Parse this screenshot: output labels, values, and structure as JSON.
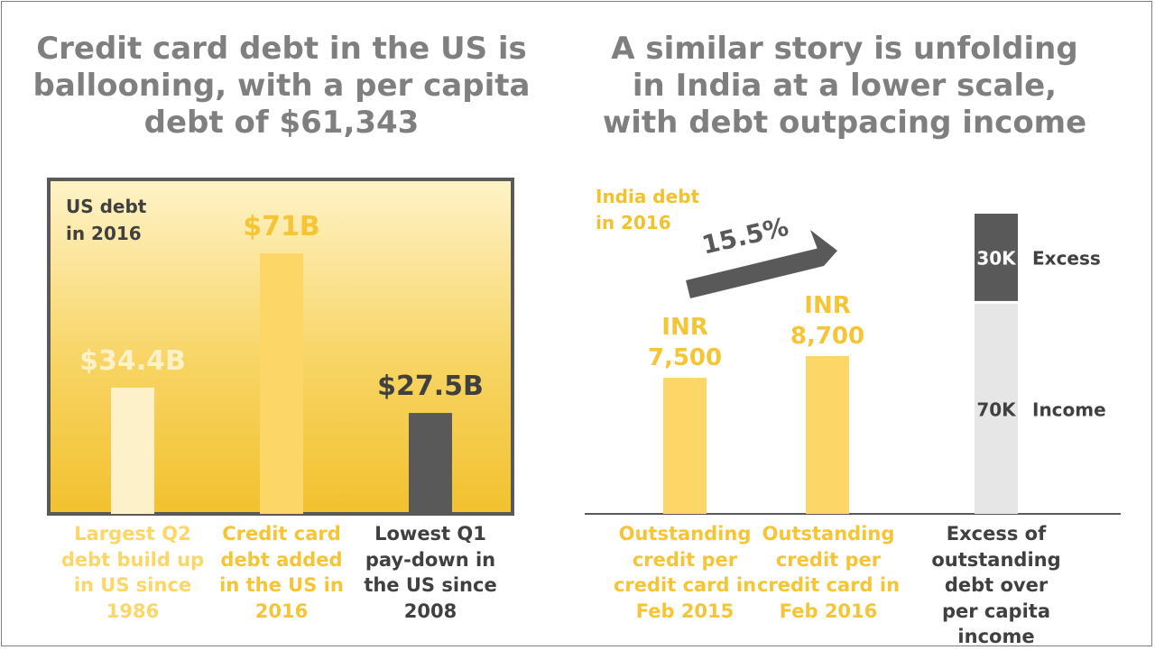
{
  "left_title": "Credit card debt in the US is ballooning, with a per capita debt of $61,343",
  "right_title": "A similar story is unfolding in India at a lower scale, with debt outpacing income",
  "colors": {
    "title": "#7f7f7f",
    "yellow": "#fcd666",
    "light_yellow": "#fdf1c9",
    "dark": "#595959",
    "light_grey": "#e6e6e6",
    "gold_text": "#f2c12e"
  },
  "chart_data": [
    {
      "type": "bar",
      "panel_label": "US debt in 2016",
      "categories": [
        "Largest Q2 debt build up in US since 1986",
        "Credit card debt added in the US in 2016",
        "Lowest Q1 pay-down in the US since 2008"
      ],
      "values": [
        34.4,
        71,
        27.5
      ],
      "value_labels": [
        "$34.4B",
        "$71B",
        "$27.5B"
      ],
      "unit": "$B",
      "grid": false
    },
    {
      "type": "bar",
      "panel_label": "India debt in 2016",
      "categories": [
        "Outstanding credit per credit card in Feb 2015",
        "Outstanding credit per credit card in Feb 2016"
      ],
      "values": [
        7500,
        8700
      ],
      "value_labels": [
        "INR 7,500",
        "INR 8,700"
      ],
      "growth_label": "15.5%",
      "grid": false
    },
    {
      "type": "bar",
      "stacked": true,
      "categories": [
        "Excess of outstanding debt over per capita income"
      ],
      "series": [
        {
          "name": "Income",
          "values": [
            70
          ],
          "value_label": "70K"
        },
        {
          "name": "Excess",
          "values": [
            30
          ],
          "value_label": "30K"
        }
      ],
      "grid": false
    }
  ]
}
